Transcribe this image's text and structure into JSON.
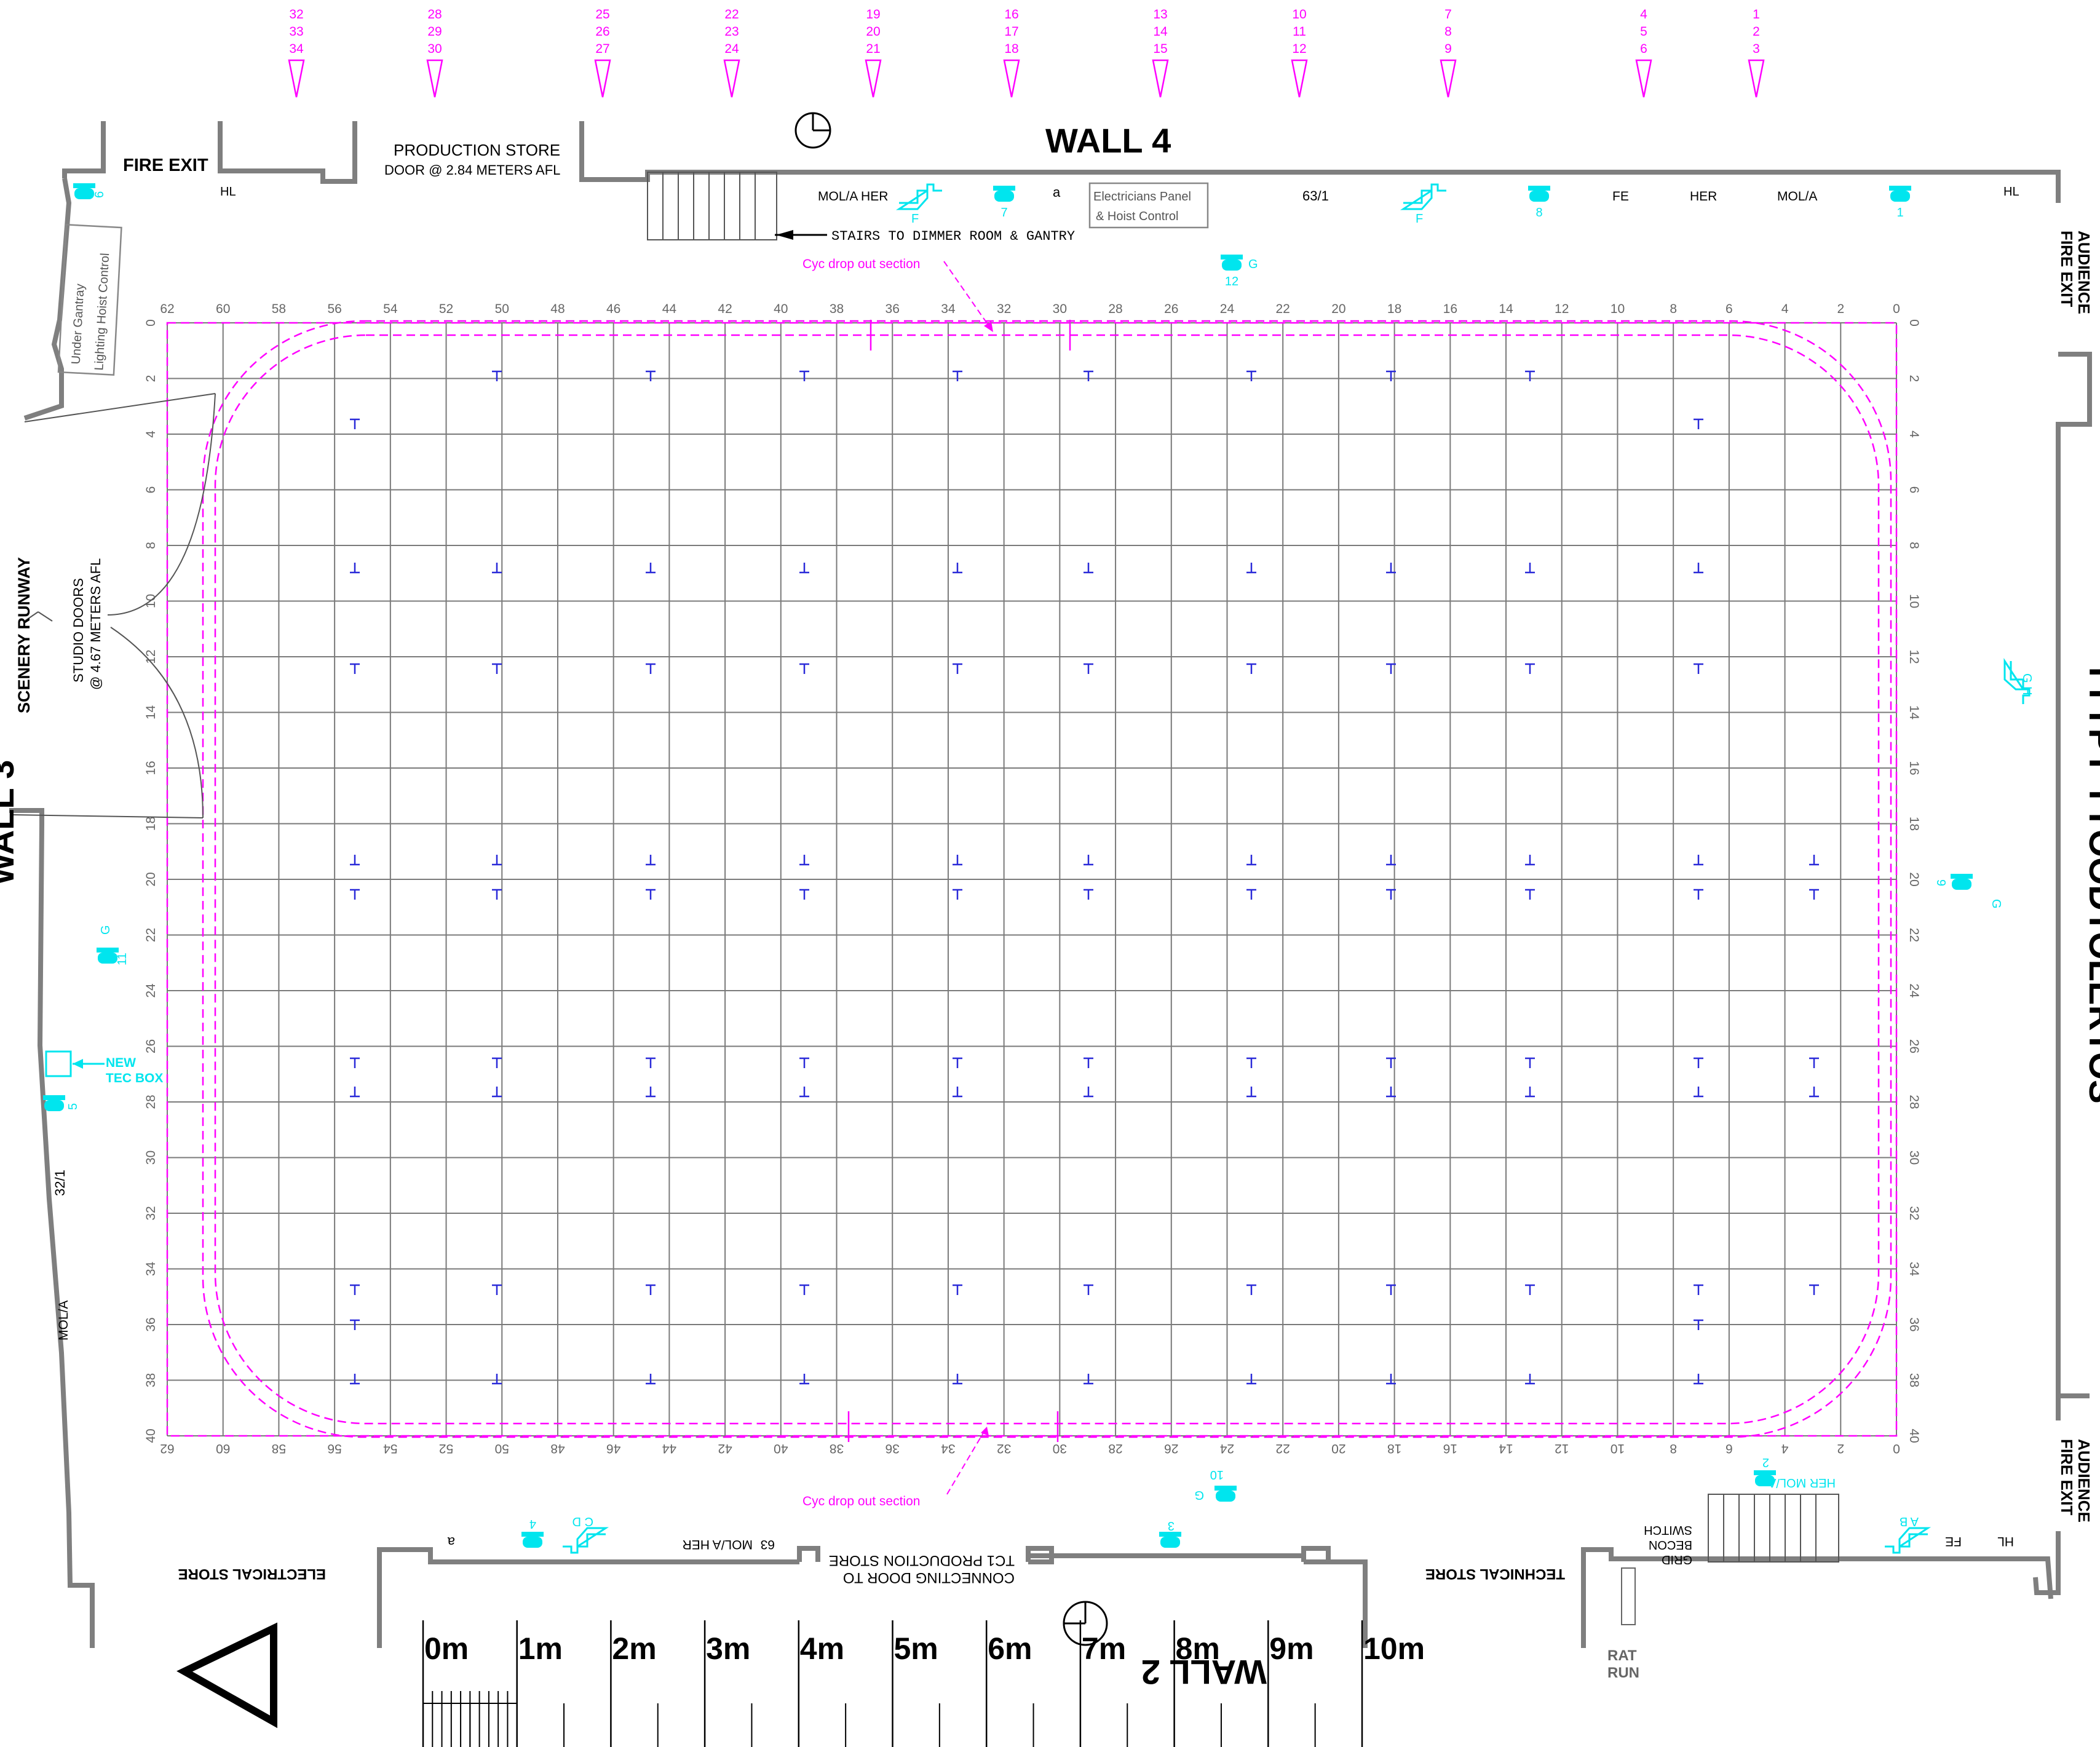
{
  "walls": {
    "wall4": "WALL 4",
    "wall2": "WALL 2",
    "wall3": "WALL 3"
  },
  "labels": {
    "fire_exit": "FIRE EXIT",
    "production_store": "PRODUCTION STORE",
    "production_store_door": "DOOR @ 2.84 METERS AFL",
    "stairs": "STAIRS TO DIMMER ROOM & GANTRY",
    "electricians_panel_1": "Electricians Panel",
    "electricians_panel_2": "& Hoist Control",
    "audience_fire_exit_1": "AUDIENCE",
    "audience_fire_exit_2": "FIRE EXIT",
    "under_gantry_1": "Under Gantray",
    "under_gantry_2": "Lighting Hoist Control",
    "scenery_runway": "SCENERY RUNWAY",
    "studio_doors_1": "STUDIO DOORS",
    "studio_doors_2": "@ 4.67 METERS AFL",
    "new_tec_box_1": "NEW",
    "new_tec_box_2": "TEC BOX",
    "cyc_drop": "Cyc drop out section",
    "electrical_store": "ELECTRICAL STORE",
    "technical_store": "TECHNICAL STORE",
    "connecting_door_1": "CONNECTING DOOR TO",
    "connecting_door_2": "TC1 PRODUCTION STORE",
    "grid_becon_1": "GRID",
    "grid_becon_2": "BECON",
    "grid_becon_3": "SWITCH",
    "rat_run_1": "RAT",
    "rat_run_2": "RUN",
    "hl": "HL",
    "fe": "FE",
    "her": "HER",
    "mol_a": "MOL/A",
    "mol_a_her": "MOL/A HER",
    "mol_a_her_bottom": "MOL/A HER",
    "her_mol_a_bottom": "HER MOL/A",
    "code_63_1": "63/1",
    "code_32_1": "32/1",
    "code_63": "63",
    "small_a": "a",
    "right_wall_text": "TTYPT TYOODTOLERTOS"
  },
  "hoist_groups": [
    "32\n33\n34",
    "28\n29\n30",
    "25\n26\n27",
    "22\n23\n24",
    "19\n20\n21",
    "16\n17\n18",
    "13\n14\n15",
    "10\n11\n12",
    "7\n8\n9",
    "4\n5\n6",
    "1\n2\n3"
  ],
  "grid_x_labels": [
    "62",
    "60",
    "58",
    "56",
    "54",
    "52",
    "50",
    "48",
    "46",
    "44",
    "42",
    "40",
    "38",
    "36",
    "34",
    "32",
    "30",
    "28",
    "26",
    "24",
    "22",
    "20",
    "18",
    "16",
    "14",
    "12",
    "10",
    "8",
    "6",
    "4",
    "2",
    "0"
  ],
  "grid_y_labels": [
    "0",
    "2",
    "4",
    "6",
    "8",
    "10",
    "12",
    "14",
    "16",
    "18",
    "20",
    "22",
    "24",
    "26",
    "28",
    "30",
    "32",
    "34",
    "36",
    "38",
    "40"
  ],
  "scale_labels": [
    "0m",
    "1m",
    "2m",
    "3m",
    "4m",
    "5m",
    "6m",
    "7m",
    "8m",
    "9m",
    "10m"
  ],
  "outlets": {
    "n1": "1",
    "n2": "2",
    "n3": "3",
    "n4": "4",
    "n5": "5",
    "n6": "6",
    "n7": "7",
    "n8": "8",
    "n9": "9",
    "n10": "10",
    "n11": "11",
    "n12": "12",
    "g": "G",
    "f": "F",
    "gh": "G H",
    "cd": "C D",
    "ab": "A B"
  },
  "colors": {
    "magenta": "#ff00ff",
    "cyan": "#00e5ee",
    "wall": "#7f7f7f",
    "grid": "#7a7a7a",
    "blue_t": "#2a2ad8"
  }
}
